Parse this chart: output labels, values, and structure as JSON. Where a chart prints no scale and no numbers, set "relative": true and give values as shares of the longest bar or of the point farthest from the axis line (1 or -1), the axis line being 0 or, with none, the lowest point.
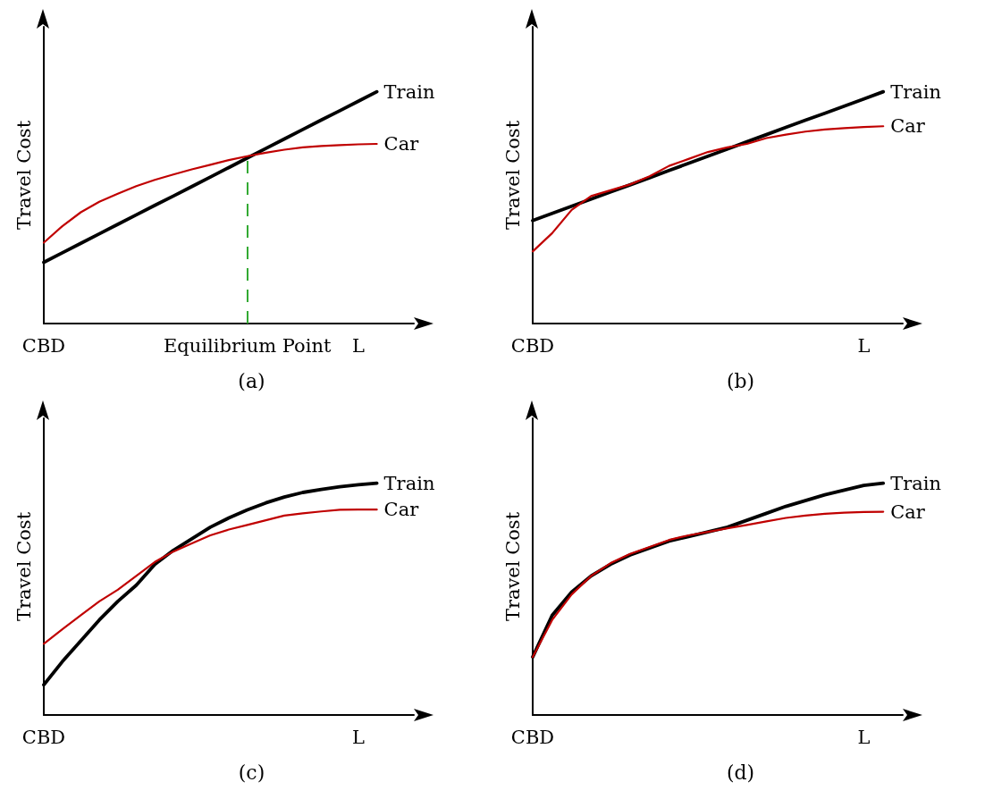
{
  "chart_data": [
    {
      "type": "line",
      "title": "(a)",
      "ylabel": "Travel Cost",
      "relative": true,
      "legend": false,
      "grid": false,
      "marker": "none",
      "categories": [
        "CBD",
        null,
        null,
        null,
        null,
        null,
        null,
        null,
        null,
        null,
        null,
        "Equilibrium Point",
        null,
        null,
        null,
        null,
        null,
        "L",
        null,
        null,
        null
      ],
      "ref_lines": [
        {
          "axis": "x",
          "value": "Equilibrium Point",
          "color": "#33aa33",
          "line_style": "dashed"
        }
      ],
      "series": [
        {
          "name": "Train",
          "color": "#000000",
          "values": [
            0.264,
            0.305,
            0.346,
            0.387,
            0.428,
            0.469,
            0.51,
            0.55,
            0.591,
            0.632,
            0.673,
            0.714,
            0.755,
            0.796,
            0.837,
            0.878,
            0.918,
            0.959,
            1,
            null,
            null
          ]
        },
        {
          "name": "Car",
          "color": "#c00000",
          "values": [
            0.349,
            0.42,
            0.48,
            0.525,
            0.56,
            0.593,
            0.62,
            0.643,
            0.665,
            0.685,
            0.705,
            0.722,
            0.737,
            0.75,
            0.76,
            0.766,
            0.77,
            0.773,
            0.775,
            null,
            null
          ]
        }
      ]
    },
    {
      "type": "line",
      "title": "(b)",
      "ylabel": "Travel Cost",
      "relative": true,
      "legend": false,
      "grid": false,
      "marker": "none",
      "categories": [
        "CBD",
        null,
        null,
        null,
        null,
        null,
        null,
        null,
        null,
        null,
        null,
        null,
        null,
        null,
        null,
        null,
        null,
        "L",
        null,
        null
      ],
      "series": [
        {
          "name": "Train",
          "color": "#000000",
          "values": [
            0.444,
            0.475,
            0.506,
            0.537,
            0.568,
            0.598,
            0.629,
            0.66,
            0.691,
            0.722,
            0.753,
            0.784,
            0.815,
            0.846,
            0.877,
            0.907,
            0.938,
            0.969,
            1,
            null
          ]
        },
        {
          "name": "Car",
          "color": "#c00000",
          "values": [
            0.311,
            0.39,
            0.49,
            0.55,
            0.575,
            0.6,
            0.635,
            0.68,
            0.71,
            0.74,
            0.76,
            0.775,
            0.8,
            0.815,
            0.828,
            0.837,
            0.843,
            0.848,
            0.851,
            null
          ]
        }
      ]
    },
    {
      "type": "line",
      "title": "(c)",
      "ylabel": "Travel Cost",
      "relative": true,
      "legend": false,
      "grid": false,
      "marker": "none",
      "categories": [
        "CBD",
        null,
        null,
        null,
        null,
        null,
        null,
        null,
        null,
        null,
        null,
        null,
        null,
        null,
        null,
        null,
        null,
        "L",
        null,
        null,
        null
      ],
      "series": [
        {
          "name": "Train",
          "color": "#000000",
          "values": [
            0.13,
            0.23,
            0.32,
            0.41,
            0.49,
            0.56,
            0.65,
            0.71,
            0.76,
            0.81,
            0.85,
            0.885,
            0.915,
            0.94,
            0.96,
            0.973,
            0.985,
            0.993,
            1,
            null,
            null
          ]
        },
        {
          "name": "Car",
          "color": "#c00000",
          "values": [
            0.307,
            0.37,
            0.43,
            0.49,
            0.54,
            0.6,
            0.66,
            0.705,
            0.74,
            0.775,
            0.8,
            0.82,
            0.84,
            0.86,
            0.87,
            0.878,
            0.885,
            0.886,
            0.886,
            null,
            null
          ]
        }
      ]
    },
    {
      "type": "line",
      "title": "(d)",
      "ylabel": "Travel Cost",
      "relative": true,
      "legend": false,
      "grid": false,
      "marker": "none",
      "categories": [
        "CBD",
        null,
        null,
        null,
        null,
        null,
        null,
        null,
        null,
        null,
        null,
        null,
        null,
        null,
        null,
        null,
        null,
        "L",
        null,
        null
      ],
      "series": [
        {
          "name": "Train",
          "color": "#000000",
          "values": [
            0.25,
            0.43,
            0.53,
            0.6,
            0.65,
            0.69,
            0.72,
            0.75,
            0.77,
            0.79,
            0.81,
            0.84,
            0.87,
            0.9,
            0.925,
            0.95,
            0.97,
            0.99,
            1,
            null
          ]
        },
        {
          "name": "Car",
          "color": "#c00000",
          "values": [
            0.25,
            0.41,
            0.52,
            0.6,
            0.655,
            0.695,
            0.725,
            0.755,
            0.775,
            0.79,
            0.805,
            0.82,
            0.835,
            0.85,
            0.86,
            0.868,
            0.873,
            0.876,
            0.877,
            null
          ]
        }
      ]
    }
  ]
}
